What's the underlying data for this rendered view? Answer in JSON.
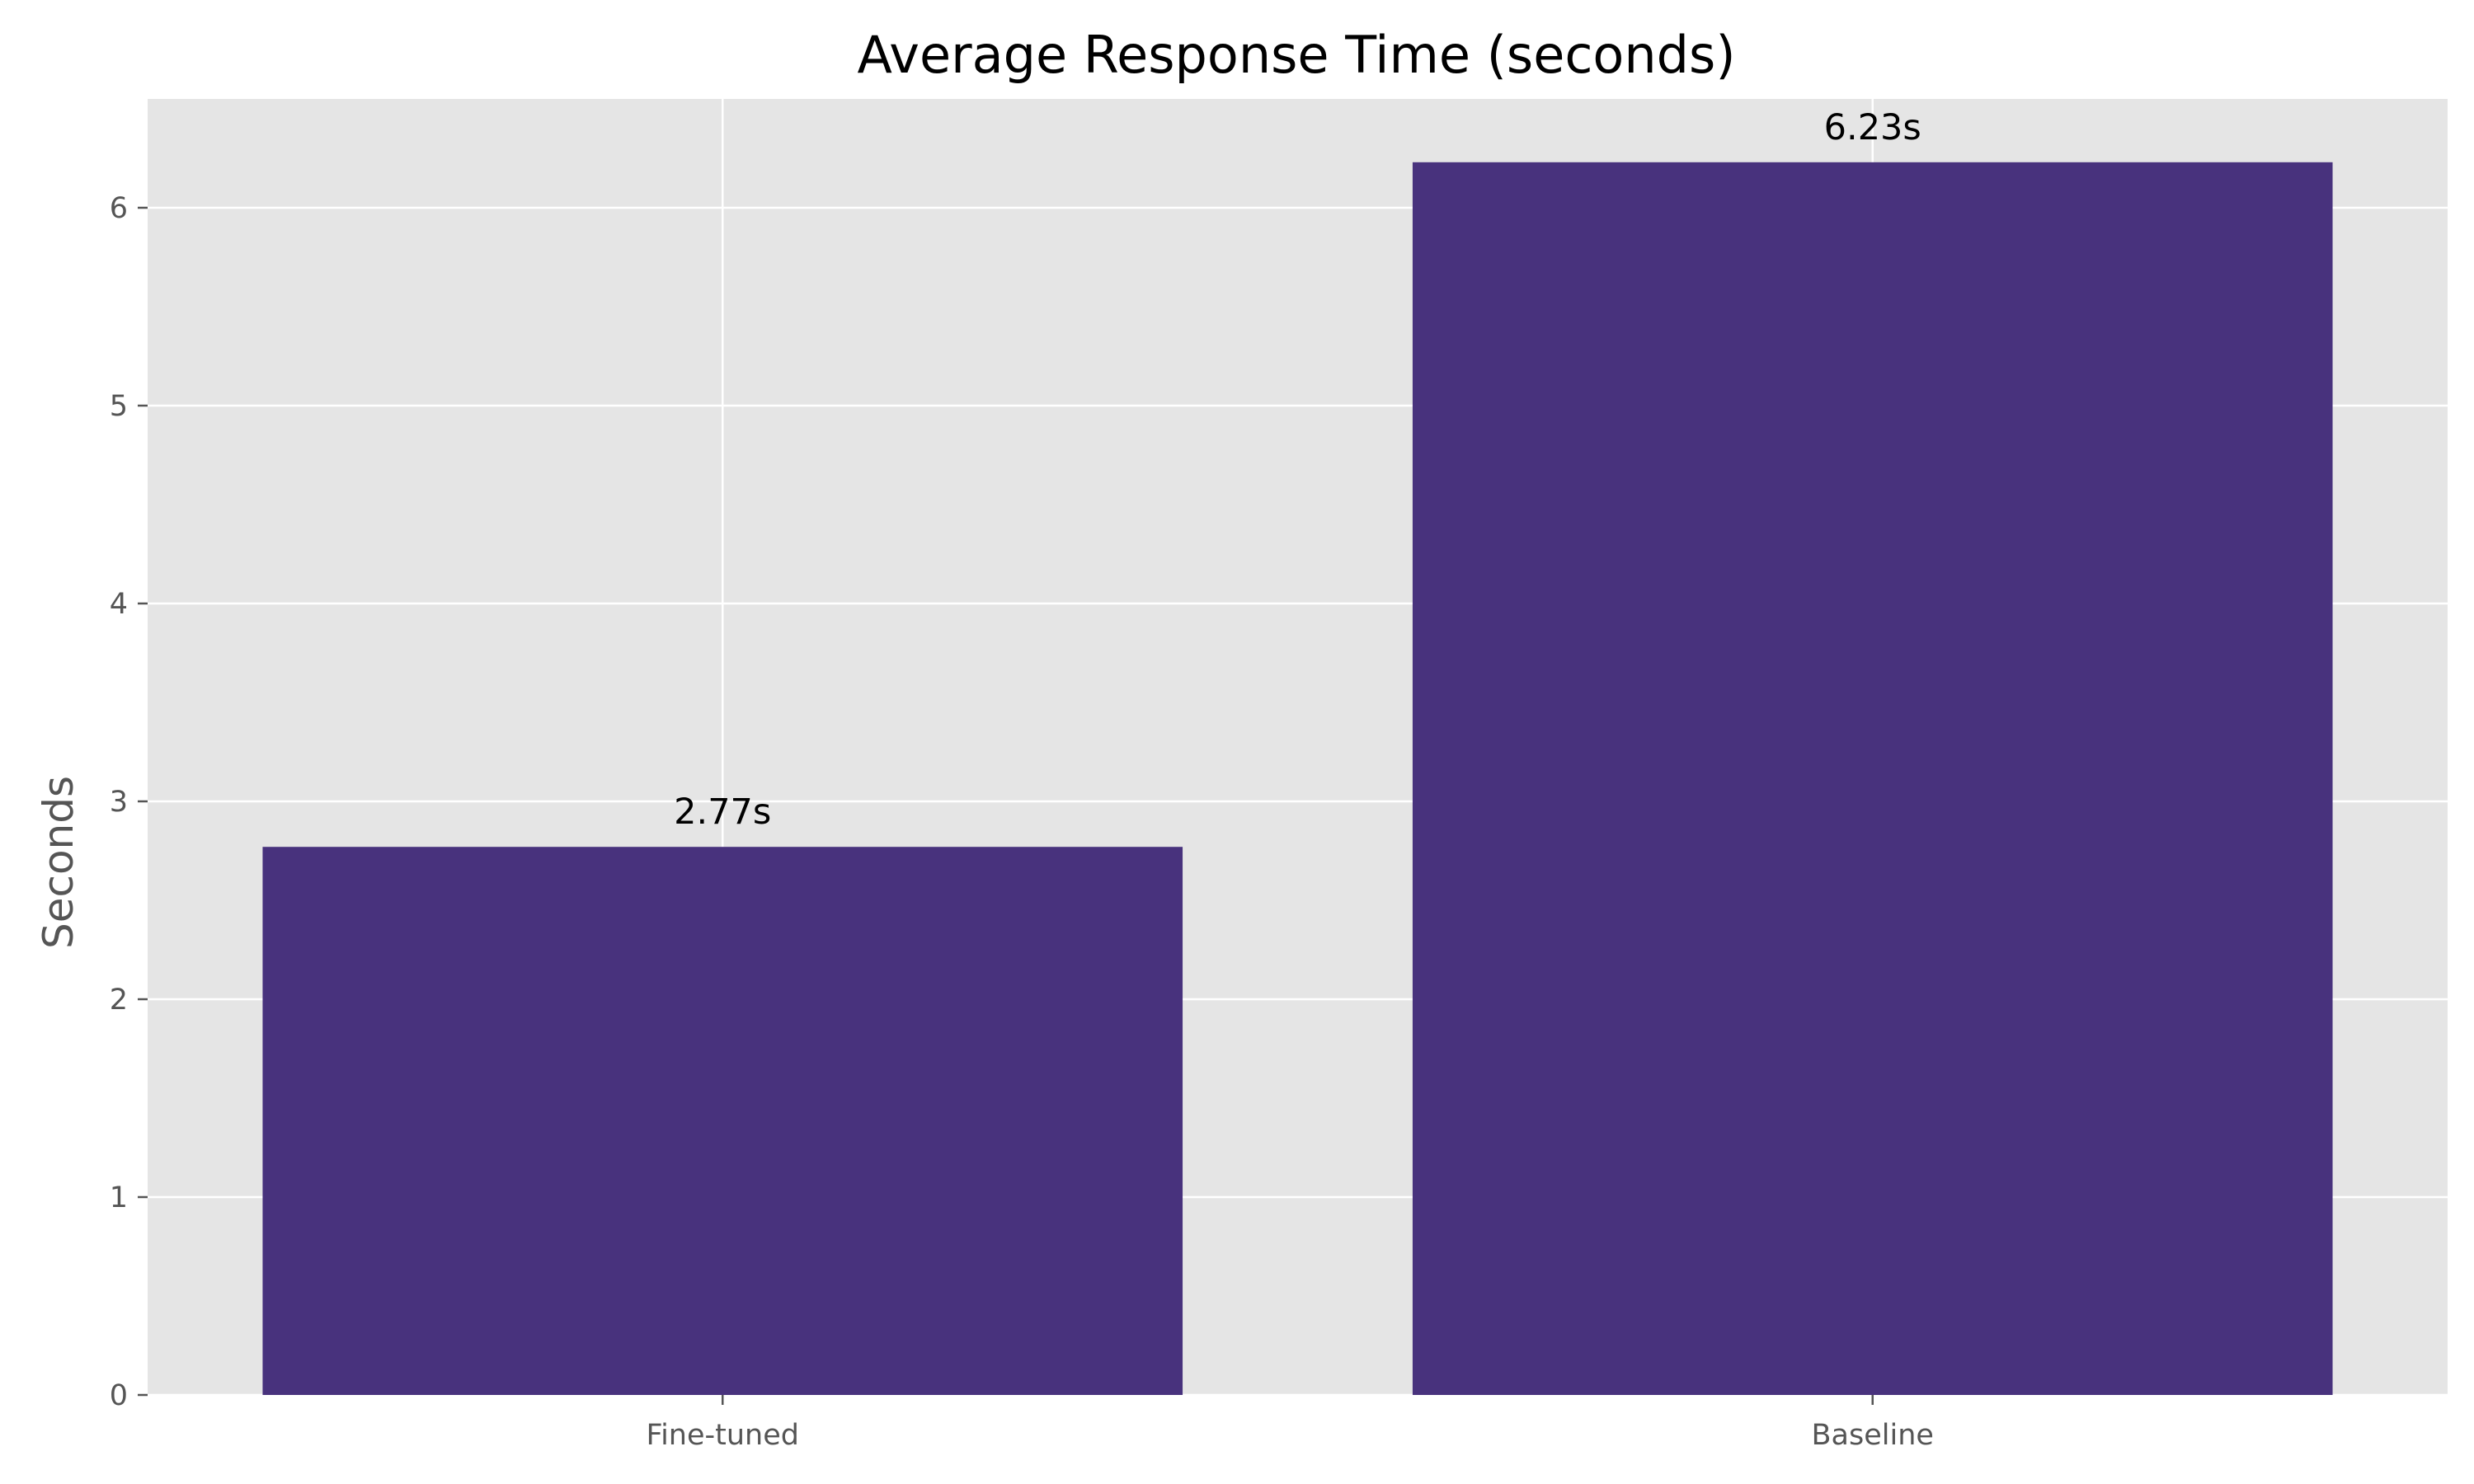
{
  "chart_data": {
    "type": "bar",
    "title": "Average Response Time (seconds)",
    "xlabel": "",
    "ylabel": "Seconds",
    "categories": [
      "Fine-tuned",
      "Baseline"
    ],
    "values": [
      2.77,
      6.23
    ],
    "value_labels": [
      "2.77s",
      "6.23s"
    ],
    "ylim": [
      0,
      6.55
    ],
    "yticks": [
      0,
      1,
      2,
      3,
      4,
      5,
      6
    ],
    "ytick_labels": [
      "0",
      "1",
      "2",
      "3",
      "4",
      "5",
      "6"
    ],
    "grid": true,
    "legend": "none",
    "colors": {
      "bar": "#48327d",
      "plot_background": "#e5e5e5",
      "grid": "#ffffff",
      "page_background": "#ffffff"
    }
  }
}
